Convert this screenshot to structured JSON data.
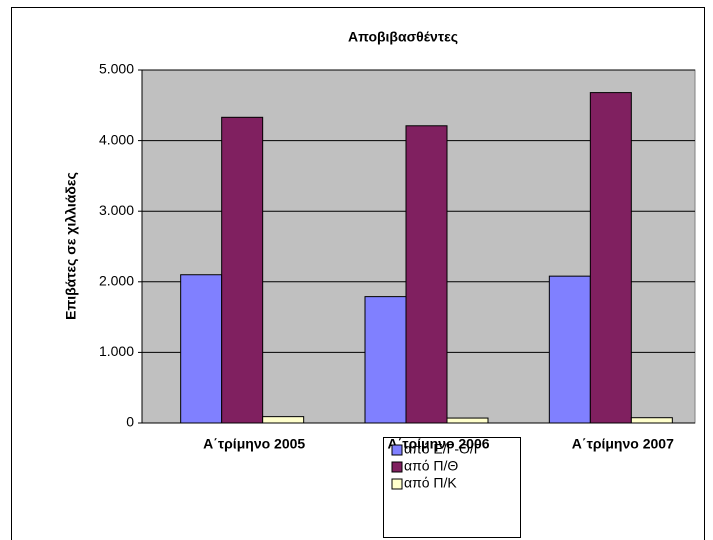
{
  "chart_data": {
    "type": "bar",
    "title": "Αποβιβασθέντες",
    "y_label": "Επιβάτες σε χιλλιάδες",
    "categories": [
      "Α΄τρίμηνο 2005",
      "Α΄τρίμηνο 2006",
      "Α΄τρίμηνο 2007"
    ],
    "series": [
      {
        "name": "από Ε/Γ-Ο/Γ",
        "color": "#8080ff",
        "values": [
          2100,
          1790,
          2080
        ]
      },
      {
        "name": "από Π/Θ",
        "color": "#802060",
        "values": [
          4330,
          4210,
          4680
        ]
      },
      {
        "name": "από Π/Κ",
        "color": "#ffffcc",
        "values": [
          90,
          70,
          75
        ]
      }
    ],
    "ylim": [
      0,
      5000
    ],
    "yticks": [
      0,
      {
        "value": 1000,
        "label": "1.000"
      },
      {
        "value": 2000,
        "label": "2.000"
      },
      {
        "value": 3000,
        "label": "3.000"
      },
      {
        "value": 4000,
        "label": "4.000"
      },
      {
        "value": 5000,
        "label": "5.000"
      }
    ],
    "grid": true
  }
}
